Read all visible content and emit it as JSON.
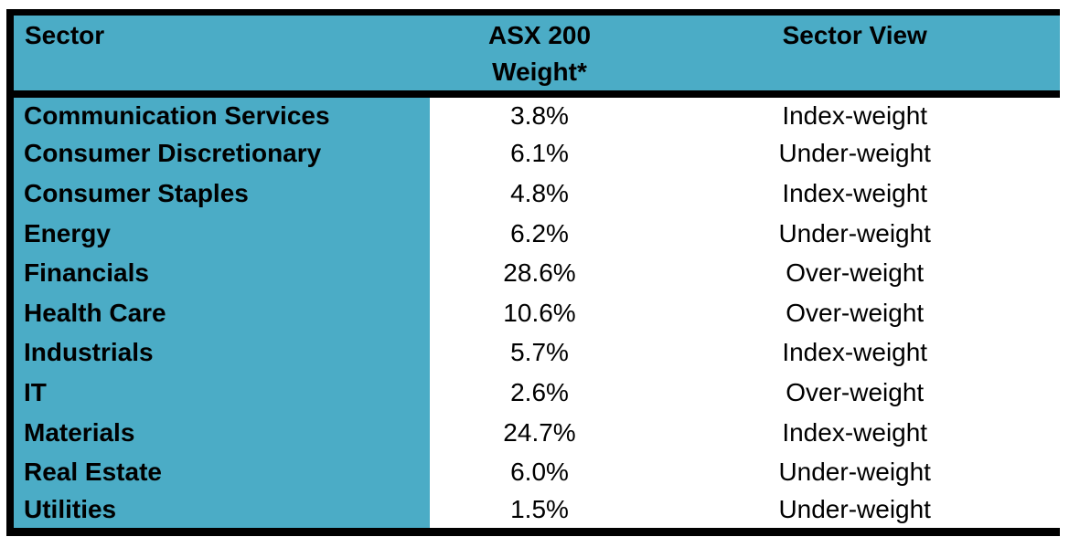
{
  "colors": {
    "accent_teal": "#4BACC6",
    "border_black": "#000000",
    "background": "#FFFFFF",
    "text": "#000000"
  },
  "header": {
    "sector": "Sector",
    "weight_line1": "ASX 200",
    "weight_line2": "Weight*",
    "view": "Sector View"
  },
  "rows": [
    {
      "sector": "Communication Services",
      "weight": "3.8%",
      "view": "Index-weight"
    },
    {
      "sector": "Consumer Discretionary",
      "weight": "6.1%",
      "view": "Under-weight"
    },
    {
      "sector": "Consumer Staples",
      "weight": "4.8%",
      "view": "Index-weight"
    },
    {
      "sector": "Energy",
      "weight": "6.2%",
      "view": "Under-weight"
    },
    {
      "sector": "Financials",
      "weight": "28.6%",
      "view": "Over-weight"
    },
    {
      "sector": "Health Care",
      "weight": "10.6%",
      "view": "Over-weight"
    },
    {
      "sector": "Industrials",
      "weight": "5.7%",
      "view": "Index-weight"
    },
    {
      "sector": "IT",
      "weight": "2.6%",
      "view": "Over-weight"
    },
    {
      "sector": "Materials",
      "weight": "24.7%",
      "view": "Index-weight"
    },
    {
      "sector": "Real Estate",
      "weight": "6.0%",
      "view": "Under-weight"
    },
    {
      "sector": "Utilities",
      "weight": "1.5%",
      "view": "Under-weight"
    }
  ],
  "chart_data": {
    "type": "table",
    "title": "",
    "columns": [
      "Sector",
      "ASX 200 Weight*",
      "Sector View"
    ],
    "rows": [
      [
        "Communication Services",
        "3.8%",
        "Index-weight"
      ],
      [
        "Consumer Discretionary",
        "6.1%",
        "Under-weight"
      ],
      [
        "Consumer Staples",
        "4.8%",
        "Index-weight"
      ],
      [
        "Energy",
        "6.2%",
        "Under-weight"
      ],
      [
        "Financials",
        "28.6%",
        "Over-weight"
      ],
      [
        "Health Care",
        "10.6%",
        "Over-weight"
      ],
      [
        "Industrials",
        "5.7%",
        "Index-weight"
      ],
      [
        "IT",
        "2.6%",
        "Over-weight"
      ],
      [
        "Materials",
        "24.7%",
        "Index-weight"
      ],
      [
        "Real Estate",
        "6.0%",
        "Under-weight"
      ],
      [
        "Utilities",
        "1.5%",
        "Under-weight"
      ]
    ],
    "weights_numeric": [
      3.8,
      6.1,
      4.8,
      6.2,
      28.6,
      10.6,
      5.7,
      2.6,
      24.7,
      6.0,
      1.5
    ],
    "layout_hints": {
      "header_background": "#4BACC6",
      "first_column_background": "#4BACC6",
      "body_background": "#FFFFFF",
      "outer_borders": [
        "top",
        "left",
        "bottom"
      ],
      "header_separator": "thick-black"
    }
  }
}
